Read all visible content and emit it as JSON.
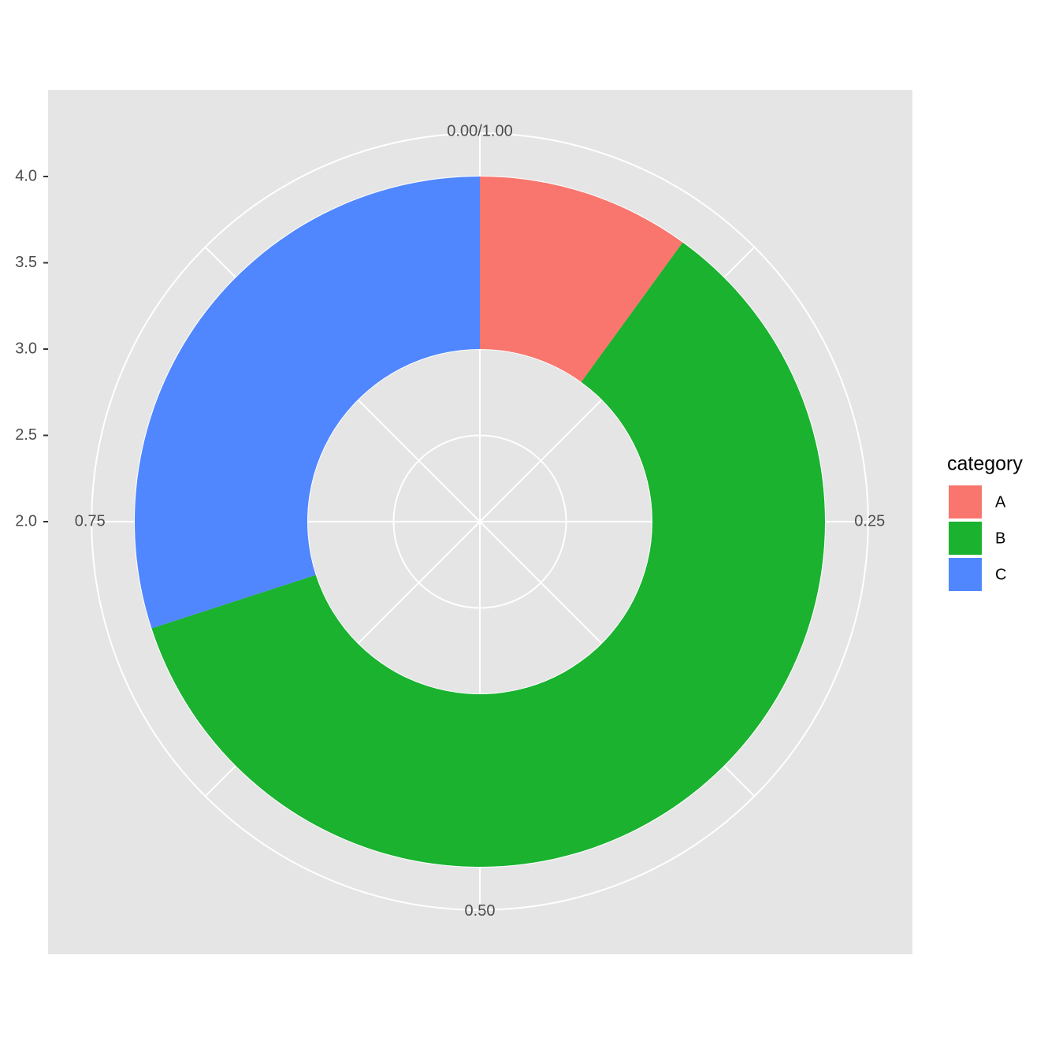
{
  "chart_data": {
    "type": "donut",
    "categories": [
      "A",
      "B",
      "C"
    ],
    "values": [
      0.1,
      0.6,
      0.3
    ],
    "colors": [
      "#f8766d",
      "#1ab22f",
      "#5087ff"
    ],
    "ring": [
      3,
      4
    ],
    "legend_title": "category",
    "legend": "right",
    "xlim": [
      0,
      1
    ],
    "xticks": [
      {
        "value": 0,
        "label": "0.00/1.00"
      },
      0.25,
      {
        "value": 0.5,
        "label": "0.50"
      },
      0.75
    ],
    "ylim": [
      2,
      4.25
    ],
    "yticks": [
      {
        "value": 2,
        "label": "2.0"
      },
      {
        "value": 2.5,
        "label": "2.5"
      },
      {
        "value": 3,
        "label": "3.0"
      },
      {
        "value": 3.5,
        "label": "3.5"
      },
      {
        "value": 4,
        "label": "4.0"
      }
    ],
    "grid": true
  }
}
